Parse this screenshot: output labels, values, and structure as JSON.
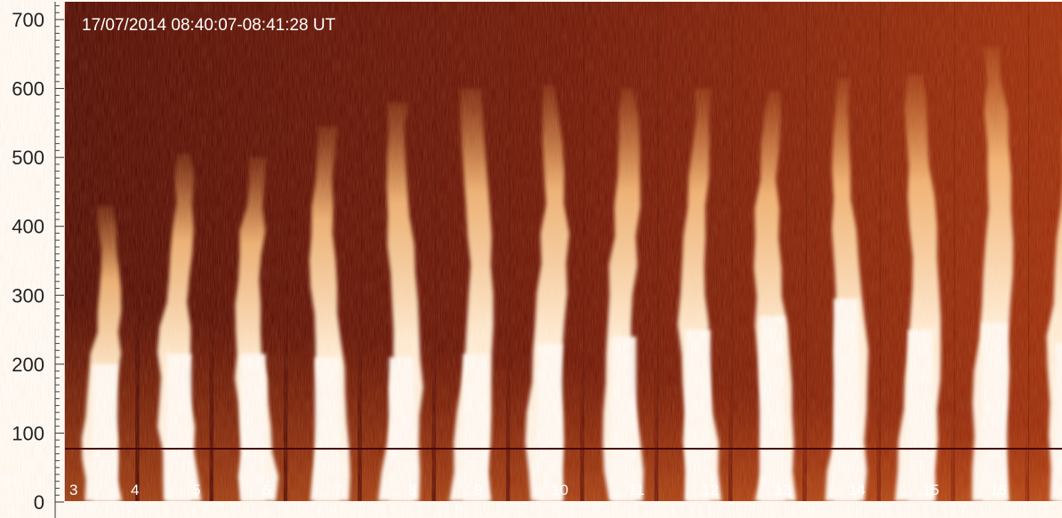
{
  "image": {
    "timestamp": "17/07/2014 08:40:07-08:41:28 UT",
    "y_ticks": [
      "0",
      "100",
      "200",
      "300",
      "400",
      "500",
      "600",
      "700"
    ],
    "frame_numbers": [
      "3",
      "4",
      "5",
      "6",
      "7",
      "8",
      "9",
      "10",
      "11",
      "12",
      "13",
      "14",
      "15",
      "16"
    ],
    "colors": {
      "background_dark": "#5a0a05",
      "background_mid": "#8a2208",
      "bright_core": "#fff6e8"
    }
  }
}
